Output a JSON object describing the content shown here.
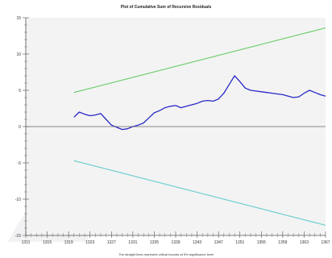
{
  "chart_data": {
    "type": "line",
    "title": "Plot of Cumulative Sum of Recursive Residuals",
    "footnote": "The straight lines represent critical bounds at 5% significance level",
    "xlabel": "",
    "ylabel": "",
    "ylim": [
      -15,
      15
    ],
    "grid": false,
    "y_ticks": [
      15,
      10,
      5,
      0,
      -5,
      -10,
      -15
    ],
    "y_tick_labels": [
      "15",
      "10",
      "5",
      "0",
      "-5",
      "-10",
      "-15"
    ],
    "x_ticks": [
      1311,
      1315,
      1319,
      1323,
      1327,
      1331,
      1335,
      1339,
      1343,
      1347,
      1351,
      1355,
      1359,
      1363,
      1367
    ],
    "x_tick_labels": [
      "1311",
      "1315",
      "1319",
      "1323",
      "1327",
      "1331",
      "1335",
      "1339",
      "1343",
      "1347",
      "1351",
      "1355",
      "1359",
      "1363",
      "1367"
    ],
    "xlim": [
      1311,
      1367
    ],
    "series": [
      {
        "color": "#2828c8",
        "x": [
          1320,
          1321,
          1322,
          1323,
          1324,
          1325,
          1326,
          1327,
          1328,
          1329,
          1330,
          1331,
          1332,
          1333,
          1334,
          1335,
          1336,
          1337,
          1338,
          1339,
          1340,
          1341,
          1342,
          1343,
          1344,
          1345,
          1346,
          1347,
          1348,
          1349,
          1350,
          1351,
          1352,
          1353,
          1354,
          1355,
          1356,
          1357,
          1358,
          1359,
          1360,
          1361,
          1362,
          1363,
          1364,
          1365,
          1366,
          1367
        ],
        "y": [
          1.3,
          2.0,
          1.7,
          1.5,
          1.6,
          1.8,
          1.0,
          0.2,
          -0.1,
          -0.4,
          -0.3,
          0.0,
          0.2,
          0.5,
          1.2,
          1.9,
          2.2,
          2.6,
          2.8,
          2.9,
          2.6,
          2.8,
          3.0,
          3.2,
          3.5,
          3.6,
          3.5,
          3.8,
          4.6,
          5.8,
          7.0,
          6.2,
          5.3,
          5.0,
          4.9,
          4.8,
          4.7,
          4.6,
          4.5,
          4.4,
          4.2,
          4.0,
          4.1,
          4.6,
          5.0,
          4.7,
          4.4,
          4.2
        ]
      },
      {
        "color": "#66cc66",
        "x": [
          1320,
          1367
        ],
        "y": [
          4.7,
          13.6
        ]
      },
      {
        "color": "#66cccc",
        "x": [
          1320,
          1367
        ],
        "y": [
          -4.7,
          -13.6
        ]
      },
      {
        "color": "#666666",
        "x": [
          1311,
          1367
        ],
        "y": [
          0,
          0
        ]
      }
    ]
  }
}
